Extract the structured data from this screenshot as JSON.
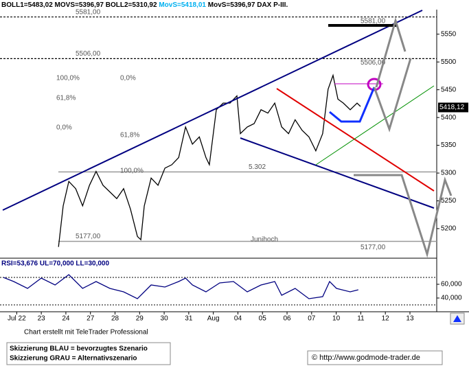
{
  "chart_data": [
    {
      "type": "line",
      "header": [
        "BOLL1=5483,02",
        "MOVS=5396,97",
        "BOLL2=5310,92",
        "MovS=5418,01",
        "MovS=5396,97",
        "DAX P-III."
      ],
      "series": [
        {
          "name": "DAX",
          "color": "#000000",
          "x": [
            1.7,
            1.89,
            2.12,
            2.4,
            2.68,
            2.96,
            3.23,
            3.51,
            3.79,
            4.07,
            4.35,
            4.63,
            4.91,
            5.05,
            5.19,
            5.47,
            5.75,
            6.03,
            6.31,
            6.59,
            6.87,
            7.15,
            7.43,
            7.7,
            7.84,
            8.12,
            8.4,
            8.68,
            8.96,
            9.1,
            9.38,
            9.66,
            9.94,
            10.22,
            10.5,
            10.78,
            11.06,
            11.33,
            11.61,
            11.89,
            12.17,
            12.45,
            12.67,
            12.87,
            13.07,
            13.29,
            13.57,
            13.85,
            13.99
          ],
          "values": [
            5167,
            5241,
            5285,
            5272,
            5241,
            5278,
            5303,
            5278,
            5266,
            5254,
            5272,
            5235,
            5186,
            5180,
            5241,
            5291,
            5278,
            5309,
            5315,
            5328,
            5383,
            5352,
            5365,
            5328,
            5315,
            5414,
            5426,
            5426,
            5439,
            5371,
            5383,
            5389,
            5414,
            5408,
            5426,
            5383,
            5371,
            5396,
            5377,
            5365,
            5340,
            5371,
            5451,
            5476,
            5433,
            5426,
            5414,
            5426,
            5420
          ]
        }
      ],
      "last_price": {
        "value": 5418.12,
        "label": "5418,12"
      },
      "levels": [
        {
          "value": 5581,
          "label": "5581,00"
        },
        {
          "value": 5506,
          "label": "5506,00"
        },
        {
          "value": 5302,
          "label": "5.302"
        },
        {
          "value": 5177,
          "label": "5177,00"
        }
      ],
      "annotations": [
        "100,0%",
        "0,0%",
        "61,8%",
        "0,0%",
        "61,8%",
        "100,0%",
        "Junihoch"
      ],
      "xlim": [
        -0.68,
        17.09
      ],
      "xticks": [
        {
          "value": 0,
          "label": "Jul 22"
        },
        {
          "value": 1,
          "label": "23"
        },
        {
          "value": 2,
          "label": "24"
        },
        {
          "value": 3,
          "label": "27"
        },
        {
          "value": 4,
          "label": "28"
        },
        {
          "value": 5,
          "label": "29"
        },
        {
          "value": 6,
          "label": "30"
        },
        {
          "value": 7,
          "label": "31"
        },
        {
          "value": 8,
          "label": "Aug"
        },
        {
          "value": 9,
          "label": "04"
        },
        {
          "value": 10,
          "label": "05"
        },
        {
          "value": 11,
          "label": "06"
        },
        {
          "value": 12,
          "label": "07"
        },
        {
          "value": 13,
          "label": "10"
        },
        {
          "value": 14,
          "label": "11"
        },
        {
          "value": 15,
          "label": "12"
        },
        {
          "value": 16,
          "label": "13"
        }
      ],
      "ylim": [
        5148,
        5593
      ],
      "yticks": [
        5550,
        5500,
        5450,
        5400,
        5350,
        5300,
        5250,
        5200
      ],
      "footer": {
        "credit": "Chart erstellt mit TeleTrader Professional",
        "legend": [
          "Skizzierung BLAU = bevorzugtes Szenario",
          "Skizzierung GRAU = Alternativszenario"
        ],
        "source": "© http://www.godmode-trader.de"
      }
    },
    {
      "type": "line",
      "header": "RSI=53,676 UL=70,000 LL=30,000",
      "bands": [
        70,
        30
      ],
      "series": [
        {
          "name": "RSI",
          "color": "#000080",
          "x": [
            -0.54,
            -0.12,
            0.44,
            1.0,
            1.56,
            2.12,
            2.68,
            3.23,
            3.79,
            4.35,
            4.91,
            5.47,
            6.03,
            6.59,
            6.87,
            7.15,
            7.7,
            8.26,
            8.82,
            9.38,
            9.94,
            10.5,
            10.78,
            11.33,
            11.89,
            12.45,
            12.73,
            13.01,
            13.57,
            13.9
          ],
          "values": [
            70,
            64,
            54,
            69,
            59,
            74,
            54,
            64,
            54,
            49,
            39,
            59,
            56,
            64,
            69,
            59,
            49,
            62,
            64,
            49,
            59,
            64,
            44,
            54,
            39,
            42,
            64,
            54,
            49,
            52
          ]
        }
      ],
      "xlim": [
        -0.68,
        17.09
      ],
      "ylim": [
        24,
        91
      ],
      "yticks": [
        {
          "value": 60,
          "label": "60,000"
        },
        {
          "value": 40,
          "label": "40,000"
        }
      ]
    }
  ]
}
